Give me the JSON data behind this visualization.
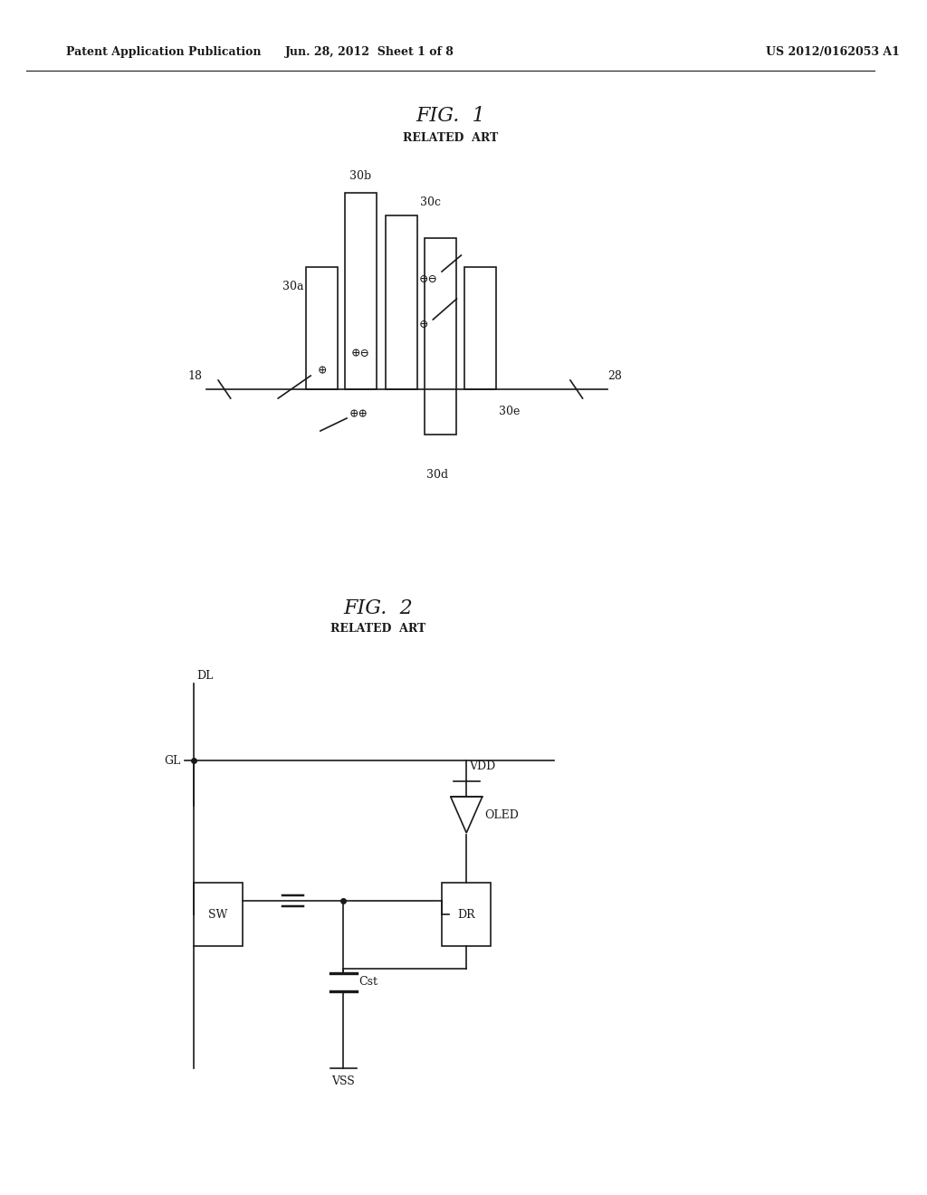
{
  "bg_color": "#ffffff",
  "header_left": "Patent Application Publication",
  "header_mid": "Jun. 28, 2012  Sheet 1 of 8",
  "header_right": "US 2012/0162053 A1",
  "fig1_title": "FIG.  1",
  "fig1_sub": "RELATED  ART",
  "fig2_title": "FIG.  2",
  "fig2_sub": "RELATED  ART",
  "label_18": "18",
  "label_28": "28",
  "label_30a": "30a",
  "label_30b": "30b",
  "label_30c": "30c",
  "label_30d": "30d",
  "label_30e": "30e",
  "label_DL": "DL",
  "label_GL": "GL",
  "label_VDD": "VDD",
  "label_VSS": "VSS",
  "label_SW": "SW",
  "label_DR": "DR",
  "label_Cst": "Cst",
  "label_OLED": "OLED"
}
